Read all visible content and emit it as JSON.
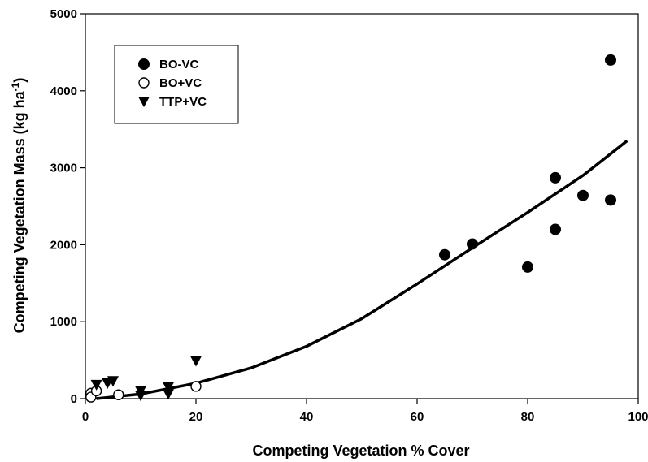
{
  "chart_data": {
    "type": "scatter",
    "title": "",
    "xlabel": "Competing Vegetation % Cover",
    "ylabel": "Competing Vegetation Mass (kg ha",
    "ylabel_sup": "-1",
    "ylabel_close": ")",
    "xlim": [
      0,
      100
    ],
    "ylim": [
      0,
      5000
    ],
    "xticks": [
      0,
      20,
      40,
      60,
      80,
      100
    ],
    "yticks": [
      0,
      1000,
      2000,
      3000,
      4000,
      5000
    ],
    "grid": false,
    "legend_position": "top-left",
    "series": [
      {
        "name": "BO-VC",
        "marker": "filled-circle",
        "color": "#000000",
        "points": [
          [
            65,
            1870
          ],
          [
            70,
            2010
          ],
          [
            80,
            1710
          ],
          [
            85,
            2870
          ],
          [
            85,
            2200
          ],
          [
            90,
            2640
          ],
          [
            95,
            4400
          ],
          [
            95,
            2580
          ]
        ]
      },
      {
        "name": "BO+VC",
        "marker": "open-circle",
        "color": "#000000",
        "points": [
          [
            1,
            70
          ],
          [
            1,
            20
          ],
          [
            2,
            100
          ],
          [
            6,
            50
          ],
          [
            20,
            160
          ]
        ]
      },
      {
        "name": "TTP+VC",
        "marker": "filled-triangle-down",
        "color": "#000000",
        "points": [
          [
            2,
            180
          ],
          [
            4,
            200
          ],
          [
            5,
            230
          ],
          [
            10,
            100
          ],
          [
            10,
            40
          ],
          [
            15,
            150
          ],
          [
            15,
            60
          ],
          [
            20,
            490
          ]
        ]
      }
    ],
    "fit_curve": {
      "x": [
        2,
        10,
        20,
        30,
        40,
        50,
        60,
        70,
        80,
        90,
        98
      ],
      "y": [
        0,
        60,
        200,
        400,
        680,
        1040,
        1490,
        1960,
        2420,
        2900,
        3350
      ]
    }
  }
}
